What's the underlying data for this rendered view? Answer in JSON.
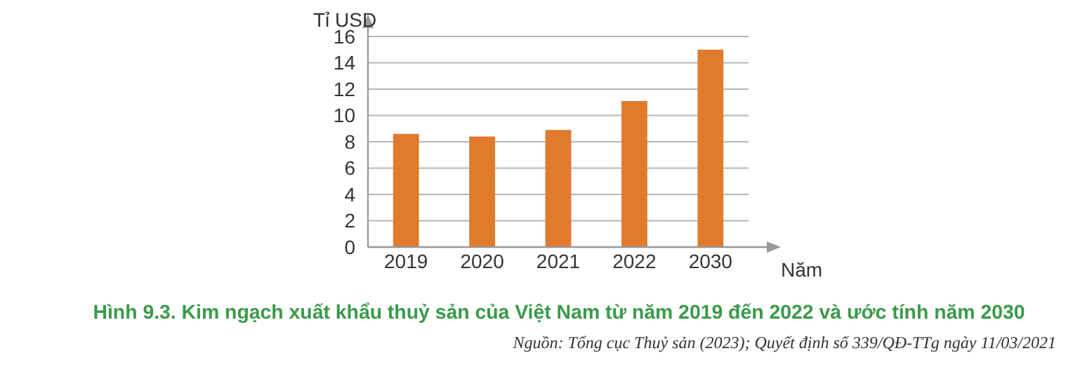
{
  "chart_data": {
    "type": "bar",
    "title": "Hình 9.3. Kim ngạch xuất khẩu thuỷ sản của Việt Nam từ năm 2019 đến 2022 và ước tính năm 2030",
    "annotations": [
      "Nguồn: Tổng cục Thuỷ sản (2023); Quyết định số 339/QĐ-TTg ngày 11/03/2021"
    ],
    "xlabel": "Năm",
    "ylabel": "Tỉ USD",
    "categories": [
      "2019",
      "2020",
      "2021",
      "2022",
      "2030"
    ],
    "values": [
      8.6,
      8.4,
      8.9,
      11.1,
      15.0
    ],
    "color": "#e07b2e",
    "ylim": [
      0,
      16
    ],
    "yticks": [
      0,
      2,
      4,
      6,
      8,
      10,
      12,
      14,
      16
    ],
    "grid": "y"
  }
}
